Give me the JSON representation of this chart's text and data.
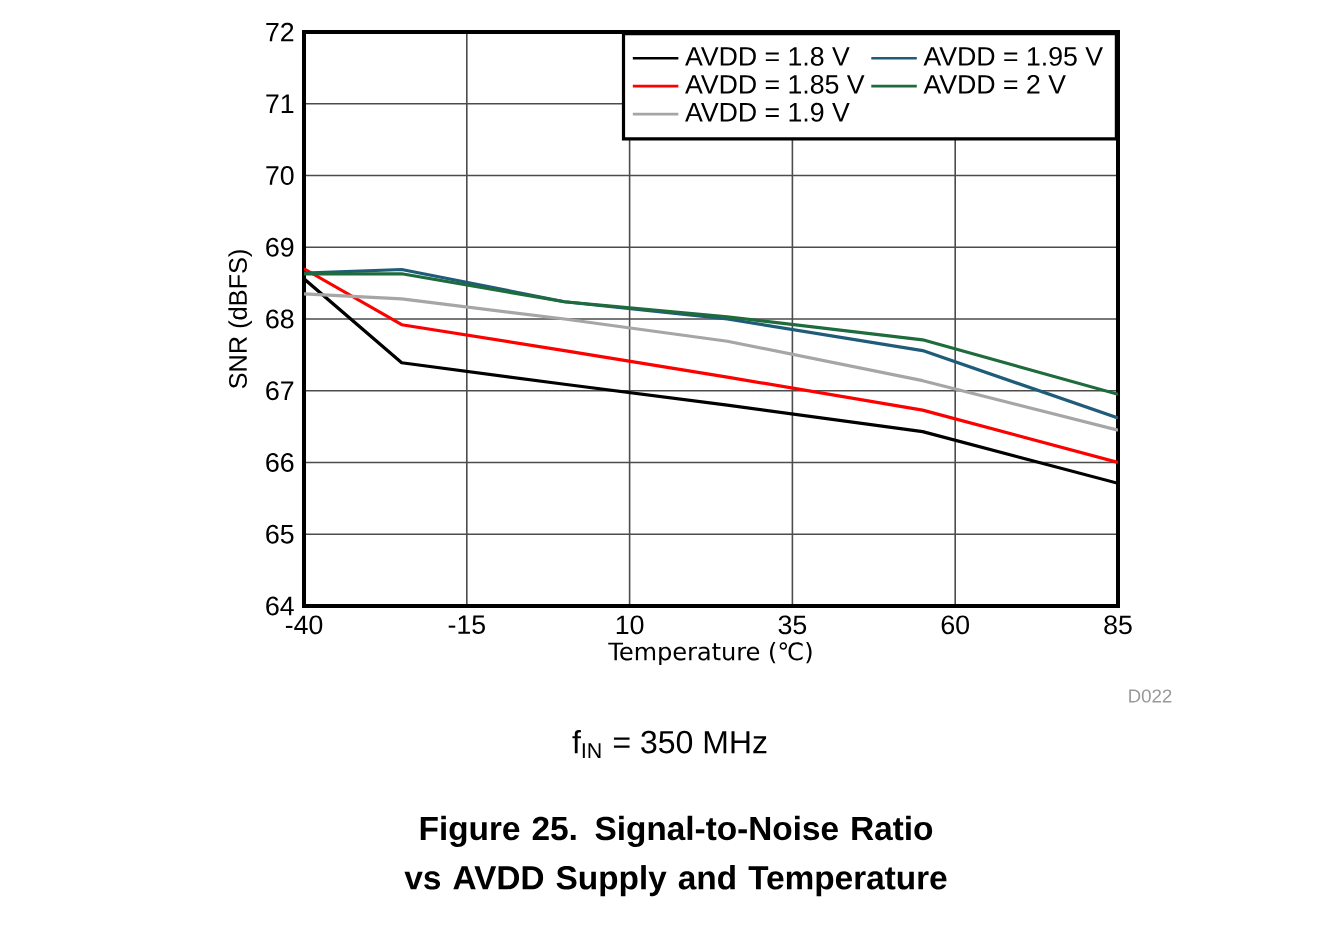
{
  "chart_data": {
    "type": "line",
    "title": "Figure 25. Signal-to-Noise Ratio vs AVDD Supply and Temperature",
    "xlabel": "Temperature (℃)",
    "ylabel": "SNR (dBFS)",
    "x": [
      -40,
      -25,
      0,
      25,
      55,
      85
    ],
    "series": [
      {
        "name": "AVDD = 1.8 V",
        "color": "#000000",
        "values": [
          68.56,
          67.39,
          67.09,
          66.8,
          66.43,
          65.71
        ]
      },
      {
        "name": "AVDD = 1.85 V",
        "color": "#ff0000",
        "values": [
          68.7,
          67.92,
          67.56,
          67.19,
          66.73,
          66.0
        ]
      },
      {
        "name": "AVDD = 1.9 V",
        "color": "#a6a6a6",
        "values": [
          68.35,
          68.28,
          68.0,
          67.69,
          67.14,
          66.45
        ]
      },
      {
        "name": "AVDD = 1.95 V",
        "color": "#1f5c7a",
        "values": [
          68.64,
          68.69,
          68.24,
          68.0,
          67.56,
          66.62
        ]
      },
      {
        "name": "AVDD = 2 V",
        "color": "#1e6b3c",
        "values": [
          68.63,
          68.63,
          68.24,
          68.03,
          67.71,
          66.95
        ]
      }
    ],
    "xlim": [
      -40,
      85
    ],
    "xticks": [
      -40,
      -15,
      10,
      35,
      60,
      85
    ],
    "ylim": [
      64,
      72
    ],
    "yticks": [
      64,
      65,
      66,
      67,
      68,
      69,
      70,
      71,
      72
    ],
    "grid": true,
    "legend": "top right",
    "marker": "none",
    "line_style": "solid",
    "annotations": [
      "f$_{IN}$ = 350 MHz",
      "D022"
    ]
  }
}
